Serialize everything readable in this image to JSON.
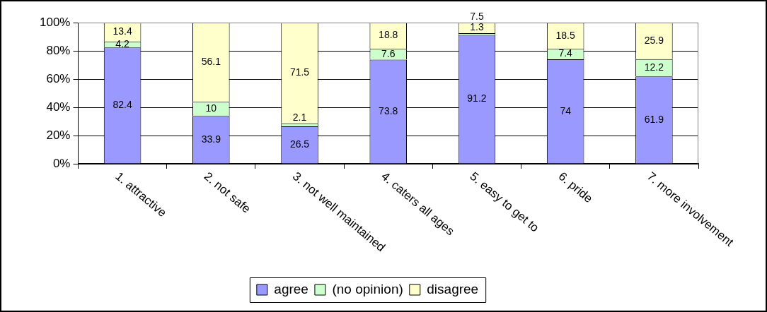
{
  "chart_data": {
    "type": "bar",
    "stacked": true,
    "categories": [
      "1. attractive",
      "2. not safe",
      "3. not well maintained",
      "4. caters all ages",
      "5. easy to get to",
      "6. pride",
      "7. more involvement"
    ],
    "series": [
      {
        "name": "agree",
        "color": "#9999ff",
        "values": [
          82.4,
          33.9,
          26.5,
          73.8,
          91.2,
          74,
          61.9
        ]
      },
      {
        "name": "(no opinion)",
        "color": "#ccffcc",
        "values": [
          4.2,
          10,
          2.1,
          7.6,
          1.3,
          7.4,
          12.2
        ]
      },
      {
        "name": "disagree",
        "color": "#ffffcc",
        "values": [
          13.4,
          56.1,
          71.5,
          18.8,
          7.5,
          18.5,
          25.9
        ]
      }
    ],
    "ylim": [
      0,
      100
    ],
    "yticks": [
      {
        "value": 0,
        "label": "0%"
      },
      {
        "value": 20,
        "label": "20%"
      },
      {
        "value": 40,
        "label": "40%"
      },
      {
        "value": 60,
        "label": "60%"
      },
      {
        "value": 80,
        "label": "80%"
      },
      {
        "value": 100,
        "label": "100%"
      }
    ],
    "grid": "y",
    "legend": "bottom",
    "data_labels": true
  }
}
